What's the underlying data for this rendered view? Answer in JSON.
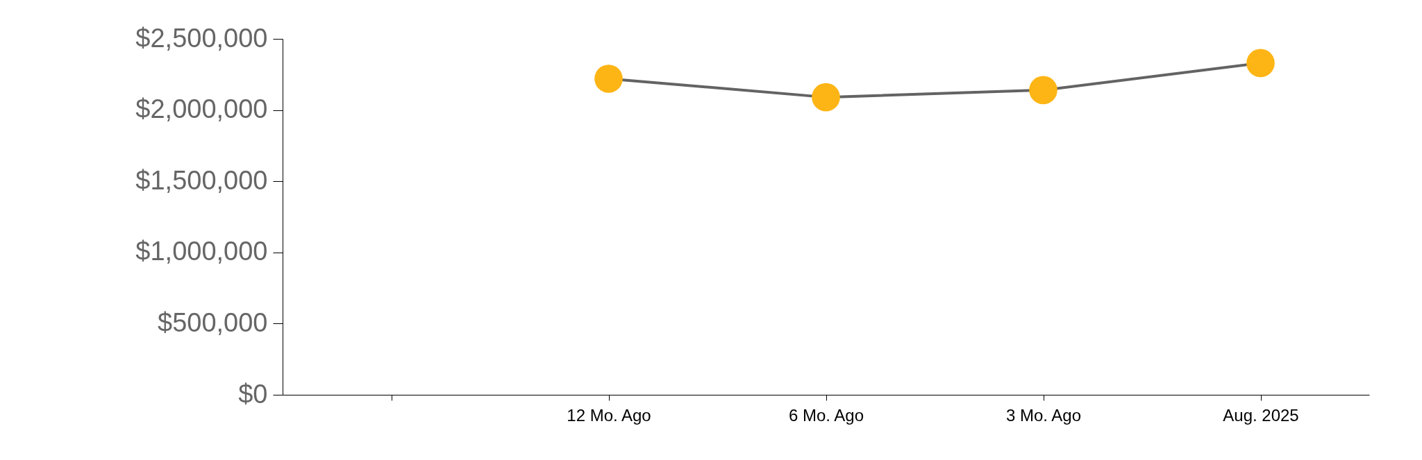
{
  "chart_data": {
    "type": "line",
    "categories": [
      null,
      "12 Mo. Ago",
      "6 Mo. Ago",
      "3 Mo. Ago",
      "Aug. 2025"
    ],
    "values": [
      null,
      2220000,
      2090000,
      2140000,
      2330000
    ],
    "color": "#fdb515",
    "marker": "circle",
    "grid": false,
    "ylim": [
      0,
      2500000
    ],
    "yticks": [
      {
        "value": 0,
        "label": "$0"
      },
      {
        "value": 500000,
        "label": "$500,000"
      },
      {
        "value": 1000000,
        "label": "$1,000,000"
      },
      {
        "value": 1500000,
        "label": "$1,500,000"
      },
      {
        "value": 2000000,
        "label": "$2,000,000"
      },
      {
        "value": 2500000,
        "label": "$2,500,000"
      }
    ]
  }
}
